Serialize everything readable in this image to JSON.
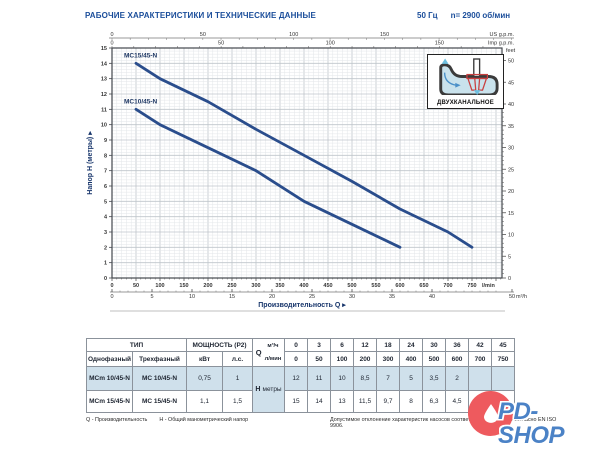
{
  "header": {
    "title": "РАБОЧИЕ ХАРАКТЕРИСТИКИ И ТЕХНИЧЕСКИЕ ДАННЫЕ",
    "frequency": "50 Гц",
    "speed": "n= 2900 об/мин"
  },
  "chart_data": {
    "type": "line",
    "xlabel": "Производительность Q",
    "ylabel": "Напор H (метры)",
    "ylim": [
      0,
      15
    ],
    "xlim_lmin": [
      0,
      812
    ],
    "grid": "on",
    "curve_color": "#2a4d8c",
    "series": [
      {
        "name": "MC15/45-N",
        "points": [
          [
            50,
            14
          ],
          [
            100,
            13
          ],
          [
            200,
            11.5
          ],
          [
            300,
            9.7
          ],
          [
            400,
            8
          ],
          [
            500,
            6.3
          ],
          [
            600,
            4.5
          ],
          [
            700,
            3
          ],
          [
            750,
            2
          ]
        ]
      },
      {
        "name": "MC10/45-N",
        "points": [
          [
            50,
            11
          ],
          [
            100,
            10
          ],
          [
            200,
            8.5
          ],
          [
            300,
            7
          ],
          [
            400,
            5
          ],
          [
            500,
            3.5
          ],
          [
            600,
            2
          ]
        ]
      }
    ],
    "axes": {
      "bottom_lmin": {
        "unit": "l/min",
        "ticks": [
          0,
          50,
          100,
          150,
          200,
          250,
          300,
          350,
          400,
          450,
          500,
          550,
          600,
          650,
          700,
          750
        ]
      },
      "bottom_m3h": {
        "unit": "m³/h",
        "ticks": [
          0,
          5,
          10,
          15,
          20,
          25,
          30,
          35,
          40,
          50
        ]
      },
      "top_us": {
        "unit": "US g.p.m.",
        "ticks": [
          0,
          50,
          100,
          150
        ]
      },
      "top_imp": {
        "unit": "Imp g.p.m.",
        "ticks": [
          0,
          50,
          100,
          150
        ]
      },
      "left_m": {
        "ticks": [
          0,
          1,
          2,
          3,
          4,
          5,
          6,
          7,
          8,
          9,
          10,
          11,
          12,
          13,
          14,
          15
        ]
      },
      "right_feet": {
        "unit": "feet",
        "ticks": [
          0,
          5,
          10,
          15,
          20,
          25,
          30,
          35,
          40,
          45,
          50
        ]
      }
    }
  },
  "inset": {
    "label": "ДВУХКАНАЛЬНОЕ"
  },
  "table": {
    "type_header": "ТИП",
    "power_header": "МОЩНОСТЬ (P2)",
    "single_phase": "Однофазный",
    "three_phase": "Трехфазный",
    "kw": "кВт",
    "hp": "л.с.",
    "q_label": "Q",
    "q_m3h_unit": "м³/ч",
    "q_lmin_unit": "л/мин",
    "h_label": "Н",
    "h_unit": "метры",
    "q_m3h": [
      "0",
      "3",
      "6",
      "12",
      "18",
      "24",
      "30",
      "36",
      "42",
      "45"
    ],
    "q_lmin": [
      "0",
      "50",
      "100",
      "200",
      "300",
      "400",
      "500",
      "600",
      "700",
      "750"
    ],
    "rows": [
      {
        "single": "MCm 10/45-N",
        "three": "MC 10/45-N",
        "kw": "0,75",
        "hp": "1",
        "h": [
          "12",
          "11",
          "10",
          "8,5",
          "7",
          "5",
          "3,5",
          "2",
          "",
          ""
        ]
      },
      {
        "single": "MCm 15/45-N",
        "three": "MC 15/45-N",
        "kw": "1,1",
        "hp": "1,5",
        "h": [
          "15",
          "14",
          "13",
          "11,5",
          "9,7",
          "8",
          "6,3",
          "4,5",
          "3",
          "2"
        ]
      }
    ]
  },
  "footnotes": {
    "q": "Q - Производительность",
    "h": "Н - Общий манометрический напор",
    "tolerance": "Допустимое отклонение характеристик насосов соответствует классу 3B согласно EN ISO 9906."
  },
  "watermark": {
    "text": "PD-SHOP"
  }
}
